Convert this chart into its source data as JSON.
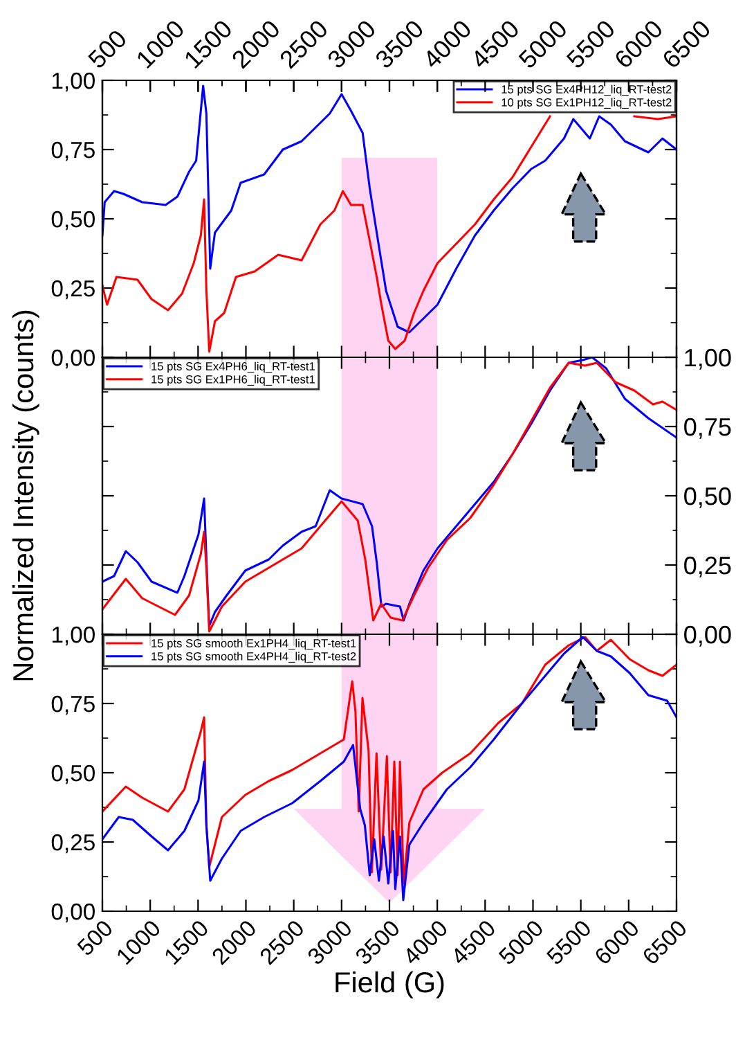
{
  "chart_data": [
    {
      "type": "line",
      "xlim": [
        500,
        6500
      ],
      "x2lim": [
        500,
        6500
      ],
      "x2ticks": [
        500,
        1000,
        1500,
        2000,
        2500,
        3000,
        3500,
        4000,
        4500,
        5000,
        5500,
        6000,
        6500
      ],
      "tick_labels": "y",
      "ylim": [
        0,
        1
      ],
      "yticks": [
        {
          "value": 0,
          "label": "0,00"
        },
        {
          "value": 0.25,
          "label": "0,25"
        },
        {
          "value": 0.5,
          "label": "0,50"
        },
        {
          "value": 0.75,
          "label": "0,75"
        },
        {
          "value": 1,
          "label": "1,00"
        }
      ],
      "legend": "top right",
      "grid": false,
      "series": [
        {
          "name": "15 pts SG Ex4PH12_liq_RT-test2",
          "color": "#0000ff",
          "x": [
            500,
            524,
            622,
            720,
            916,
            1161,
            1284,
            1406,
            1480,
            1553,
            1587,
            1627,
            1676,
            1847,
            1945,
            2190,
            2386,
            2582,
            2729,
            2876,
            3000,
            3098,
            3220,
            3294,
            3367,
            3465,
            3586,
            3708,
            3855,
            4002,
            4198,
            4394,
            4590,
            4786,
            4982,
            5128,
            5324,
            5422,
            5594,
            5692,
            5814,
            5961,
            6206,
            6353,
            6500
          ],
          "values": [
            0.44,
            0.56,
            0.6,
            0.59,
            0.56,
            0.55,
            0.58,
            0.67,
            0.71,
            0.98,
            0.88,
            0.32,
            0.45,
            0.53,
            0.63,
            0.66,
            0.75,
            0.78,
            0.83,
            0.88,
            0.95,
            0.89,
            0.81,
            0.61,
            0.45,
            0.24,
            0.11,
            0.09,
            0.14,
            0.19,
            0.32,
            0.44,
            0.53,
            0.61,
            0.68,
            0.71,
            0.79,
            0.86,
            0.79,
            0.87,
            0.84,
            0.78,
            0.74,
            0.79,
            0.75
          ]
        },
        {
          "name": "10 pts SG Ex1PH12_liq_RT-test2",
          "color": "#ff0000",
          "x": [
            500,
            549,
            647,
            867,
            1014,
            1186,
            1333,
            1455,
            1529,
            1563,
            1587,
            1617,
            1676,
            1773,
            1896,
            2092,
            2337,
            2582,
            2778,
            2925,
            3013,
            3098,
            3220,
            3294,
            3367,
            3416,
            3488,
            3561,
            3659,
            3757,
            3855,
            4002,
            4198,
            4394,
            4590,
            4786,
            4982,
            5178,
            5500,
            6059,
            6304,
            6500
          ],
          "values": [
            0.26,
            0.19,
            0.29,
            0.28,
            0.21,
            0.17,
            0.23,
            0.34,
            0.44,
            0.57,
            0.24,
            0.02,
            0.13,
            0.16,
            0.29,
            0.31,
            0.37,
            0.35,
            0.48,
            0.53,
            0.6,
            0.55,
            0.55,
            0.42,
            0.29,
            0.19,
            0.06,
            0.03,
            0.06,
            0.16,
            0.24,
            0.34,
            0.41,
            0.48,
            0.57,
            0.65,
            0.76,
            0.87,
            null,
            0.87,
            0.86,
            0.87
          ]
        }
      ]
    },
    {
      "type": "line",
      "xlim": [
        500,
        6500
      ],
      "xticks": [
        500,
        1000,
        1500,
        2000,
        2500,
        3000,
        3500,
        4000,
        4500,
        5000,
        5500,
        6000,
        6500
      ],
      "tick_labels": false,
      "ylabel": "Normalized Intensity (counts)",
      "y2lim": [
        0,
        1
      ],
      "y2ticks": [
        {
          "value": 0,
          "label": "0,00"
        },
        {
          "value": 0.25,
          "label": "0,25"
        },
        {
          "value": 0.5,
          "label": "0,50"
        },
        {
          "value": 0.75,
          "label": "0,75"
        },
        {
          "value": 1,
          "label": "1,00"
        }
      ],
      "legend": "top left",
      "grid": false,
      "series": [
        {
          "name": "15 pts SG Ex4PH6_liq_RT-test1",
          "color": "#0000ff",
          "axis": "y2",
          "x": [
            500,
            622,
            745,
            867,
            1014,
            1284,
            1357,
            1504,
            1563,
            1602,
            1617,
            1676,
            1798,
            1994,
            2239,
            2386,
            2582,
            2729,
            2876,
            3000,
            3220,
            3318,
            3367,
            3416,
            3463,
            3610,
            3649,
            3708,
            3855,
            4002,
            4198,
            4394,
            4590,
            4786,
            4982,
            5178,
            5373,
            5520,
            5618,
            5765,
            5961,
            6206,
            6500
          ],
          "values": [
            0.19,
            0.21,
            0.3,
            0.26,
            0.19,
            0.15,
            0.21,
            0.36,
            0.49,
            0.14,
            0.03,
            0.08,
            0.14,
            0.23,
            0.27,
            0.32,
            0.37,
            0.39,
            0.52,
            0.49,
            0.47,
            0.39,
            0.26,
            0.1,
            0.11,
            0.1,
            0.05,
            0.11,
            0.23,
            0.31,
            0.39,
            0.47,
            0.55,
            0.65,
            0.76,
            0.88,
            0.98,
            0.99,
            1.0,
            0.96,
            0.85,
            0.78,
            0.71
          ]
        },
        {
          "name": "15 pts SG Ex1PH6_liq_RT-test1",
          "color": "#ff0000",
          "axis": "y2",
          "x": [
            500,
            745,
            916,
            1259,
            1406,
            1529,
            1563,
            1587,
            1617,
            1749,
            1994,
            2239,
            2582,
            2876,
            3000,
            3169,
            3247,
            3331,
            3414,
            3512,
            3635,
            3757,
            3904,
            4100,
            4345,
            4590,
            4786,
            4982,
            5178,
            5373,
            5545,
            5667,
            5863,
            6059,
            6255,
            6353,
            6500
          ],
          "values": [
            0.09,
            0.2,
            0.13,
            0.07,
            0.14,
            0.29,
            0.37,
            0.24,
            0.01,
            0.1,
            0.19,
            0.24,
            0.31,
            0.43,
            0.48,
            0.41,
            0.27,
            0.05,
            0.11,
            0.06,
            0.05,
            0.14,
            0.24,
            0.34,
            0.42,
            0.54,
            0.65,
            0.77,
            0.89,
            0.98,
            0.97,
            0.98,
            0.91,
            0.88,
            0.83,
            0.84,
            0.81
          ]
        }
      ]
    },
    {
      "type": "line",
      "xlim": [
        500,
        6500
      ],
      "xticks": [
        500,
        1000,
        1500,
        2000,
        2500,
        3000,
        3500,
        4000,
        4500,
        5000,
        5500,
        6000,
        6500
      ],
      "xlabel": "Field (G)",
      "ylim": [
        0,
        1
      ],
      "yticks": [
        {
          "value": 0,
          "label": "0,00"
        },
        {
          "value": 0.25,
          "label": "0,25"
        },
        {
          "value": 0.5,
          "label": "0,50"
        },
        {
          "value": 0.75,
          "label": "0,75"
        },
        {
          "value": 1,
          "label": "1,00"
        }
      ],
      "legend": "top left",
      "grid": false,
      "series": [
        {
          "name": "15 pts SG smooth Ex1PH4_liq_RT-test1",
          "color": "#ff0000",
          "x": [
            500,
            745,
            916,
            1186,
            1357,
            1529,
            1563,
            1587,
            1617,
            1749,
            1994,
            2239,
            2484,
            2778,
            3023,
            3111,
            3145,
            3179,
            3218,
            3282,
            3316,
            3365,
            3414,
            3473,
            3512,
            3551,
            3586,
            3610,
            3649,
            3708,
            3855,
            4051,
            4345,
            4639,
            4884,
            5128,
            5373,
            5545,
            5667,
            5814,
            6010,
            6206,
            6353,
            6500
          ],
          "values": [
            0.36,
            0.45,
            0.41,
            0.36,
            0.44,
            0.65,
            0.7,
            0.31,
            0.16,
            0.34,
            0.42,
            0.47,
            0.51,
            0.57,
            0.62,
            0.83,
            0.72,
            0.36,
            0.77,
            0.58,
            0.14,
            0.57,
            0.15,
            0.56,
            0.14,
            0.54,
            0.13,
            0.54,
            0.1,
            0.32,
            0.44,
            0.5,
            0.57,
            0.68,
            0.75,
            0.89,
            0.96,
            0.99,
            0.94,
            0.98,
            0.91,
            0.87,
            0.85,
            0.89
          ]
        },
        {
          "name": "15 pts SG smooth Ex4PH4_liq_RT-test2",
          "color": "#0000ff",
          "x": [
            500,
            671,
            818,
            1014,
            1186,
            1357,
            1504,
            1563,
            1587,
            1627,
            1749,
            1945,
            2190,
            2484,
            2778,
            3023,
            3120,
            3194,
            3243,
            3294,
            3341,
            3390,
            3439,
            3488,
            3537,
            3561,
            3610,
            3644,
            3708,
            3855,
            4100,
            4345,
            4590,
            4884,
            5128,
            5324,
            5520,
            5667,
            5814,
            6010,
            6206,
            6402,
            6500
          ],
          "values": [
            0.26,
            0.34,
            0.33,
            0.27,
            0.22,
            0.29,
            0.4,
            0.54,
            0.31,
            0.11,
            0.19,
            0.29,
            0.34,
            0.39,
            0.47,
            0.54,
            0.6,
            0.37,
            0.31,
            0.13,
            0.26,
            0.11,
            0.27,
            0.1,
            0.29,
            0.08,
            0.27,
            0.04,
            0.24,
            0.32,
            0.44,
            0.52,
            0.62,
            0.75,
            0.85,
            0.93,
            0.99,
            0.94,
            0.92,
            0.86,
            0.78,
            0.76,
            0.7
          ]
        }
      ]
    }
  ]
}
